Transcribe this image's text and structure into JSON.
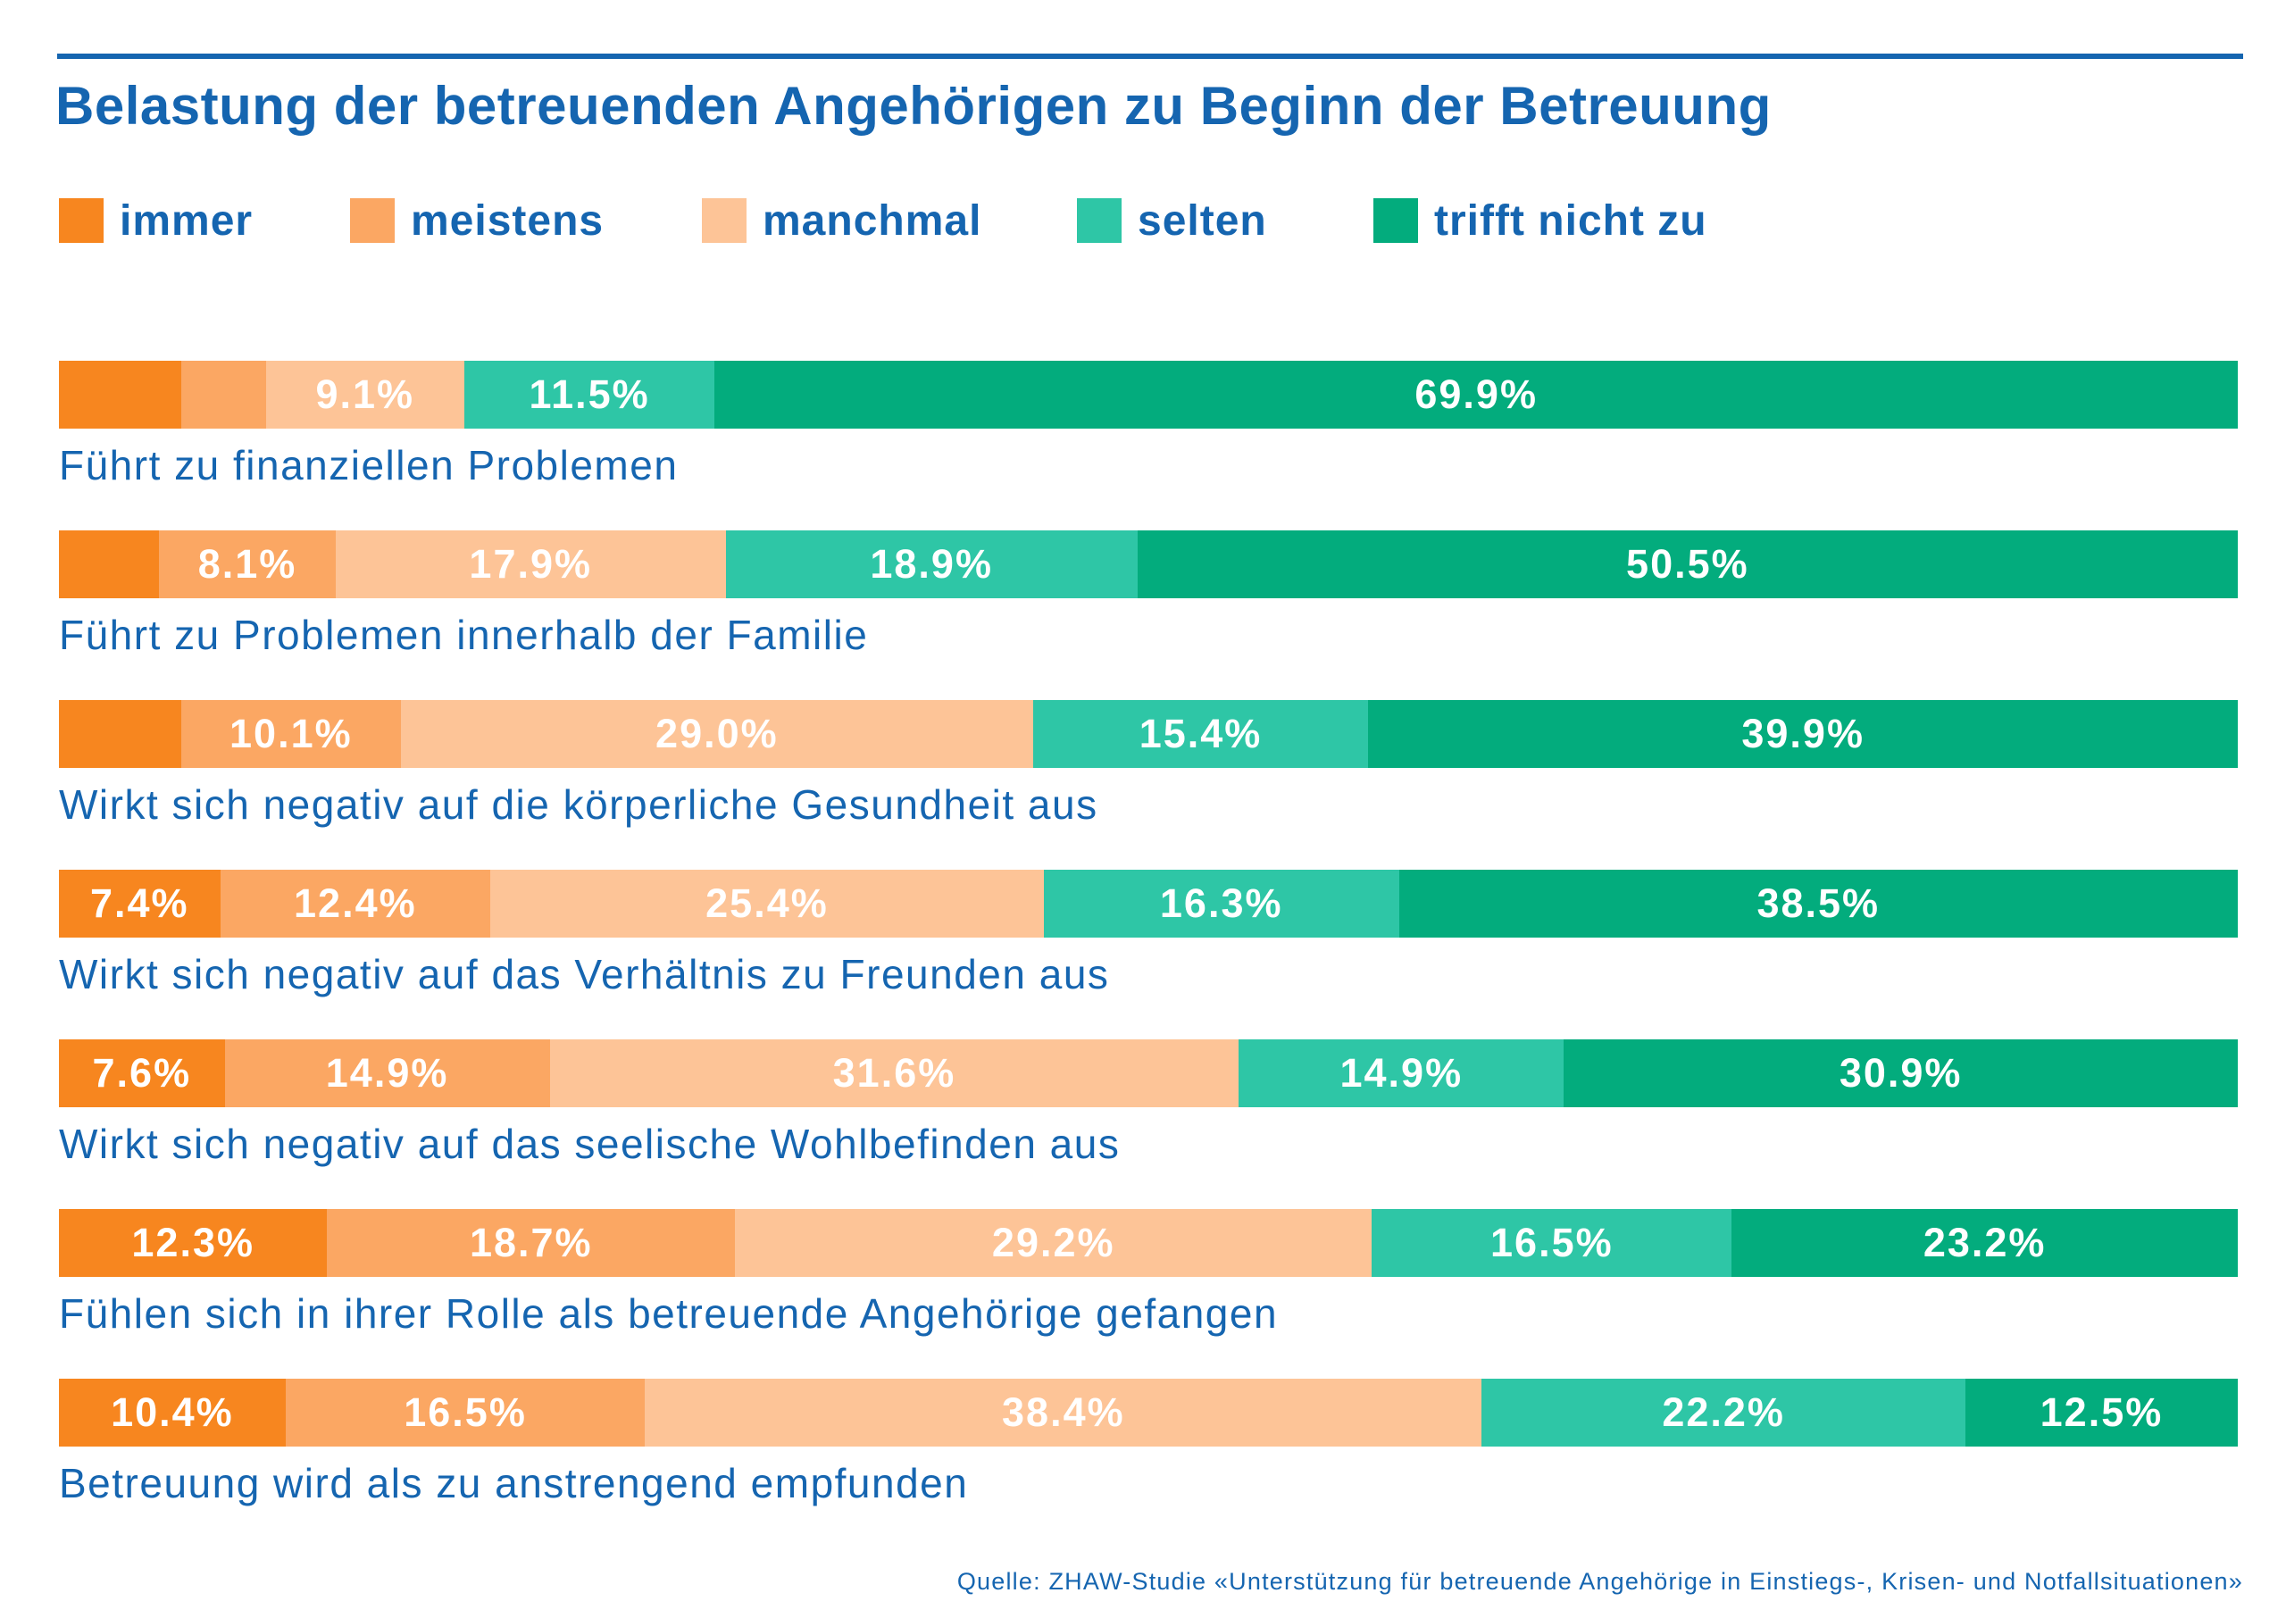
{
  "chart_data": {
    "type": "bar",
    "orientation": "horizontal",
    "stacked": true,
    "percent_stacked": true,
    "title": "Belastung der betreuenden Angehörigen zu Beginn der Betreuung",
    "legend_position": "top",
    "categories": [
      "Führt zu finanziellen Problemen",
      "Führt zu Problemen innerhalb der Familie",
      "Wirkt sich negativ auf die körperliche Gesundheit aus",
      "Wirkt sich negativ auf das Verhältnis zu Freunden aus",
      "Wirkt sich negativ auf das seelische Wohlbefinden aus",
      "Fühlen sich in ihrer Rolle als betreuende Angehörige gefangen",
      "Betreuung wird als zu anstrengend empfunden"
    ],
    "series": [
      {
        "name": "immer",
        "color": "#f7861f",
        "values": [
          5.6,
          4.6,
          5.6,
          7.4,
          7.6,
          12.3,
          10.4
        ],
        "labels": [
          "",
          "",
          "",
          "7.4%",
          "7.6%",
          "12.3%",
          "10.4%"
        ]
      },
      {
        "name": "meistens",
        "color": "#fba763",
        "values": [
          3.9,
          8.1,
          10.1,
          12.4,
          14.9,
          18.7,
          16.5
        ],
        "labels": [
          "",
          "8.1%",
          "10.1%",
          "12.4%",
          "14.9%",
          "18.7%",
          "16.5%"
        ]
      },
      {
        "name": "manchmal",
        "color": "#fdc497",
        "values": [
          9.1,
          17.9,
          29.0,
          25.4,
          31.6,
          29.2,
          38.4
        ],
        "labels": [
          "9.1%",
          "17.9%",
          "29.0%",
          "25.4%",
          "31.6%",
          "29.2%",
          "38.4%"
        ]
      },
      {
        "name": "selten",
        "color": "#2ec6a6",
        "values": [
          11.5,
          18.9,
          15.4,
          16.3,
          14.9,
          16.5,
          22.2
        ],
        "labels": [
          "11.5%",
          "18.9%",
          "15.4%",
          "16.3%",
          "14.9%",
          "16.5%",
          "22.2%"
        ]
      },
      {
        "name": "trifft nicht zu",
        "color": "#03ac7d",
        "values": [
          69.9,
          50.5,
          39.9,
          38.5,
          30.9,
          23.2,
          12.5
        ],
        "labels": [
          "69.9%",
          "50.5%",
          "39.9%",
          "38.5%",
          "30.9%",
          "23.2%",
          "12.5%"
        ]
      }
    ]
  },
  "source": "Quelle: ZHAW-Studie «Unterstützung für betreuende Angehörige in Einstiegs-, Krisen- und Notfallsituationen»",
  "colors": {
    "title": "#1565b0",
    "text": "#1565b0"
  }
}
